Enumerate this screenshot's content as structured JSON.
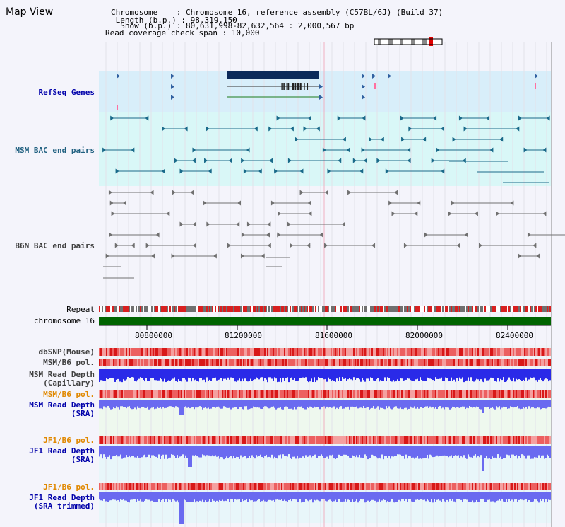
{
  "title": "Map View",
  "info": {
    "chromosome": "Chromosome    : Chromosome 16, reference assembly (C57BL/6J) (Build 37)",
    "length": " Length (b.p.) : 98,319,150",
    "show": "  Show (b.p.) : 80,631,998-82,632,564 : 2,000,567 bp",
    "read_coverage": "Read coverage check span : 10,000"
  },
  "tracks": {
    "refseq": "RefSeq Genes",
    "msm_bac": "MSM BAC end pairs",
    "b6n_bac": "B6N BAC end pairs",
    "repeat": "Repeat",
    "chromosome": "chromosome 16",
    "dbsnp": "dbSNP(Mouse)",
    "msm_b6_pol_1": "MSM/B6 pol.",
    "msm_depth_cap_1": "MSM Read Depth",
    "msm_depth_cap_2": "(Capillary)",
    "msm_b6_pol_2": "MSM/B6 pol.",
    "msm_depth_sra_1": "MSM Read Depth",
    "msm_depth_sra_2": "(SRA)",
    "jf1_pol_1": "JF1/B6 pol.",
    "jf1_depth_sra_1": "JF1 Read Depth",
    "jf1_depth_sra_2": "(SRA)",
    "jf1_pol_2": "JF1/B6 pol.",
    "jf1_depth_trim_1": "JF1 Read Depth",
    "jf1_depth_trim_2": "(SRA trimmed)"
  },
  "axis": {
    "ticks": [
      "80800000",
      "81200000",
      "81600000",
      "82000000",
      "82400000"
    ]
  },
  "colors": {
    "refseq_bg": "#d8eefa",
    "msm_bg": "#d9f7f7",
    "gene": "#0b2a5a",
    "msm_pair": "#1a6a8a",
    "b6n_pair": "#707070",
    "chrom": "#006400",
    "depth": "#2020e0"
  }
}
